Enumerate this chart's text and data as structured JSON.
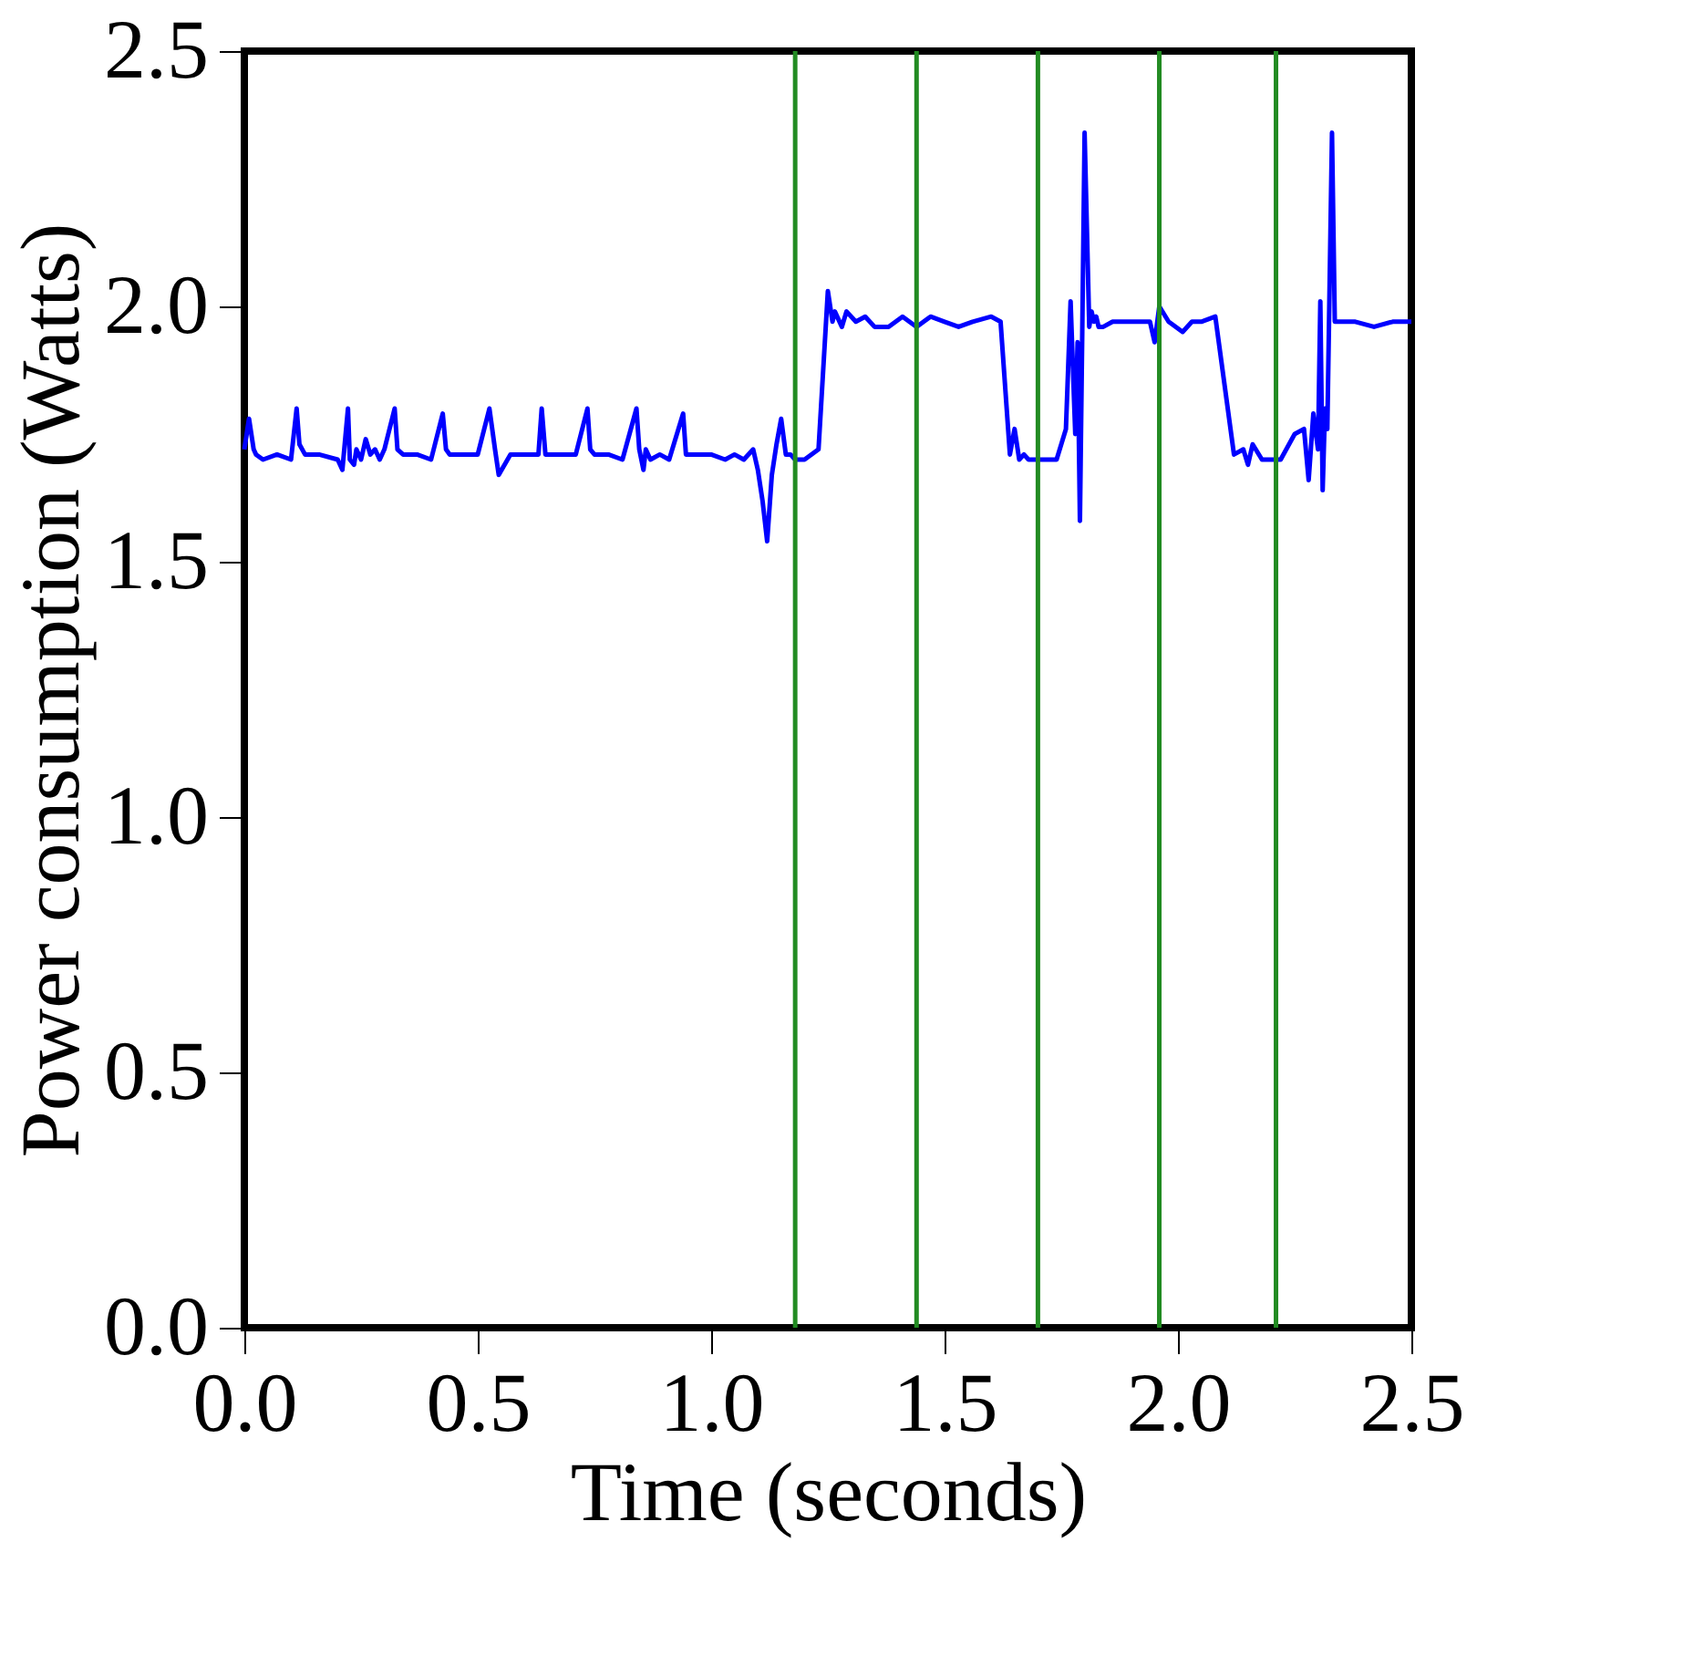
{
  "chart_data": {
    "type": "line",
    "xlabel": "Time (seconds)",
    "ylabel": "Power consumption (Watts)",
    "xlim": [
      0,
      2.5
    ],
    "ylim": [
      0,
      2.5
    ],
    "xticks": [
      {
        "value": 0,
        "label": "0.0"
      },
      0.5,
      {
        "value": 1,
        "label": "1.0"
      },
      1.5,
      {
        "value": 2,
        "label": "2.0"
      },
      2.5
    ],
    "yticks": [
      {
        "value": 0,
        "label": "0.0"
      },
      0.5,
      {
        "value": 1,
        "label": "1.0"
      },
      1.5,
      {
        "value": 2,
        "label": "2.0"
      },
      2.5
    ],
    "grid": false,
    "marker": "none",
    "line_style": "solid",
    "series": [
      {
        "color": "#0000ff",
        "x": [
          0.0,
          0.01,
          0.02,
          0.025,
          0.04,
          0.07,
          0.1,
          0.112,
          0.118,
          0.13,
          0.16,
          0.2,
          0.21,
          0.222,
          0.226,
          0.235,
          0.24,
          0.25,
          0.26,
          0.27,
          0.28,
          0.29,
          0.3,
          0.322,
          0.328,
          0.34,
          0.37,
          0.4,
          0.425,
          0.432,
          0.44,
          0.47,
          0.5,
          0.525,
          0.537,
          0.545,
          0.57,
          0.6,
          0.63,
          0.637,
          0.645,
          0.68,
          0.71,
          0.735,
          0.741,
          0.75,
          0.78,
          0.81,
          0.84,
          0.846,
          0.855,
          0.86,
          0.87,
          0.89,
          0.91,
          0.94,
          0.946,
          0.955,
          0.98,
          1.0,
          1.03,
          1.05,
          1.07,
          1.09,
          1.1,
          1.11,
          1.12,
          1.13,
          1.14,
          1.15,
          1.16,
          1.17,
          1.18,
          1.2,
          1.23,
          1.25,
          1.26,
          1.265,
          1.28,
          1.29,
          1.31,
          1.33,
          1.35,
          1.38,
          1.41,
          1.44,
          1.47,
          1.5,
          1.53,
          1.56,
          1.6,
          1.62,
          1.64,
          1.65,
          1.66,
          1.67,
          1.68,
          1.7,
          1.74,
          1.76,
          1.77,
          1.78,
          1.785,
          1.79,
          1.795,
          1.8,
          1.81,
          1.815,
          1.82,
          1.825,
          1.83,
          1.84,
          1.86,
          1.9,
          1.94,
          1.95,
          1.96,
          1.98,
          2.01,
          2.03,
          2.05,
          2.08,
          2.12,
          2.14,
          2.15,
          2.16,
          2.18,
          2.2,
          2.22,
          2.25,
          2.27,
          2.28,
          2.29,
          2.3,
          2.305,
          2.31,
          2.315,
          2.32,
          2.33,
          2.336,
          2.34,
          2.38,
          2.42,
          2.46,
          2.5
        ],
        "values": [
          1.72,
          1.78,
          1.72,
          1.71,
          1.7,
          1.71,
          1.7,
          1.8,
          1.73,
          1.71,
          1.71,
          1.7,
          1.68,
          1.8,
          1.7,
          1.69,
          1.72,
          1.7,
          1.74,
          1.71,
          1.72,
          1.7,
          1.72,
          1.8,
          1.72,
          1.71,
          1.71,
          1.7,
          1.79,
          1.72,
          1.71,
          1.71,
          1.71,
          1.8,
          1.72,
          1.67,
          1.71,
          1.71,
          1.71,
          1.8,
          1.71,
          1.71,
          1.71,
          1.8,
          1.72,
          1.71,
          1.71,
          1.7,
          1.8,
          1.72,
          1.68,
          1.72,
          1.7,
          1.71,
          1.7,
          1.79,
          1.71,
          1.71,
          1.71,
          1.71,
          1.7,
          1.71,
          1.7,
          1.72,
          1.68,
          1.62,
          1.54,
          1.67,
          1.73,
          1.78,
          1.71,
          1.71,
          1.7,
          1.7,
          1.72,
          2.03,
          1.97,
          1.99,
          1.96,
          1.99,
          1.97,
          1.98,
          1.96,
          1.96,
          1.98,
          1.96,
          1.98,
          1.97,
          1.96,
          1.97,
          1.98,
          1.97,
          1.71,
          1.76,
          1.7,
          1.71,
          1.7,
          1.7,
          1.7,
          1.76,
          2.01,
          1.75,
          1.93,
          1.58,
          1.95,
          2.34,
          1.96,
          1.99,
          1.97,
          1.98,
          1.96,
          1.96,
          1.97,
          1.97,
          1.97,
          1.93,
          2.0,
          1.97,
          1.95,
          1.97,
          1.97,
          1.98,
          1.71,
          1.72,
          1.69,
          1.73,
          1.7,
          1.7,
          1.7,
          1.75,
          1.76,
          1.66,
          1.79,
          1.72,
          2.01,
          1.64,
          1.8,
          1.76,
          2.34,
          1.97,
          1.97,
          1.97,
          1.96,
          1.97,
          1.97
        ]
      }
    ],
    "ref_lines": [
      {
        "axis": "x",
        "value": 1.18,
        "color": "#228b22"
      },
      {
        "axis": "x",
        "value": 1.44,
        "color": "#228b22"
      },
      {
        "axis": "x",
        "value": 1.7,
        "color": "#228b22"
      },
      {
        "axis": "x",
        "value": 1.96,
        "color": "#228b22"
      },
      {
        "axis": "x",
        "value": 2.21,
        "color": "#228b22"
      }
    ]
  }
}
